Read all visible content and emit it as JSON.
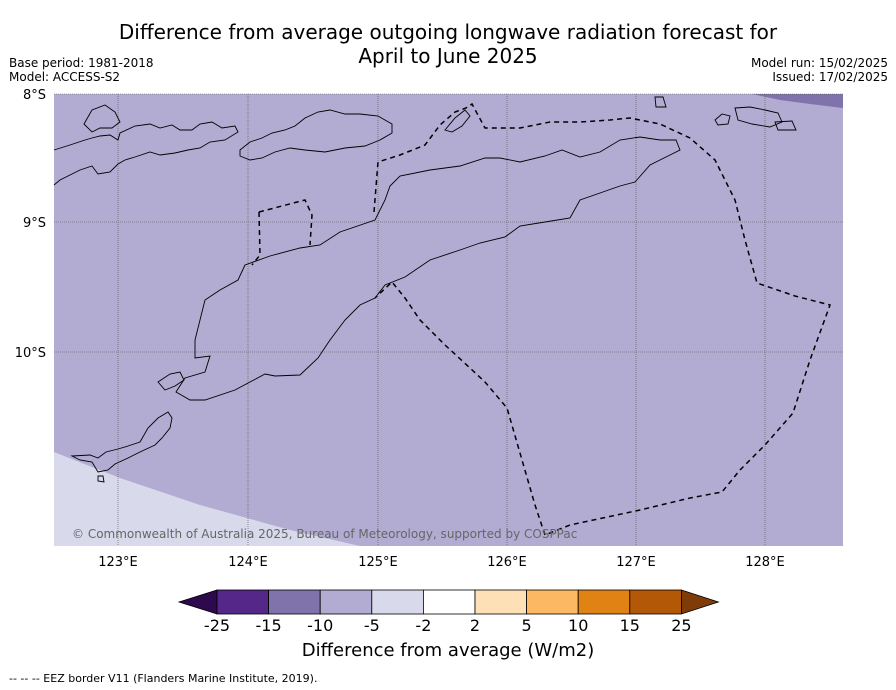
{
  "title_line1": "Difference from average outgoing longwave radiation forecast for",
  "title_line2": "April to June 2025",
  "meta_left": [
    "Base period: 1981-2018",
    "Model: ACCESS-S2"
  ],
  "meta_right": [
    "Model run: 15/02/2025",
    "Issued: 17/02/2025"
  ],
  "lat_labels": [
    "8°S",
    "9°S",
    "10°S"
  ],
  "lon_labels": [
    "123°E",
    "124°E",
    "125°E",
    "126°E",
    "127°E",
    "128°E"
  ],
  "copyright": "© Commonwealth of Australia 2025, Bureau of Meteorology, supported by COSPPac",
  "colorbar": {
    "ticks": [
      "-25",
      "-15",
      "-10",
      "-5",
      "-2",
      "2",
      "5",
      "10",
      "15",
      "25"
    ],
    "colors": [
      "#2d0a4e",
      "#542788",
      "#8073ac",
      "#b2abd2",
      "#d8daeb",
      "#ffffff",
      "#fee0b6",
      "#fdb863",
      "#e08214",
      "#b35806",
      "#7f3b08"
    ],
    "title": "Difference from average (W/m2)"
  },
  "legend_footer": "--  --  -- EEZ border V11 (Flanders Marine Institute, 2019).",
  "map_colors": {
    "main_fill": "#b2abd2",
    "light_fill": "#d8daeb",
    "dark_fill": "#8073ac"
  }
}
